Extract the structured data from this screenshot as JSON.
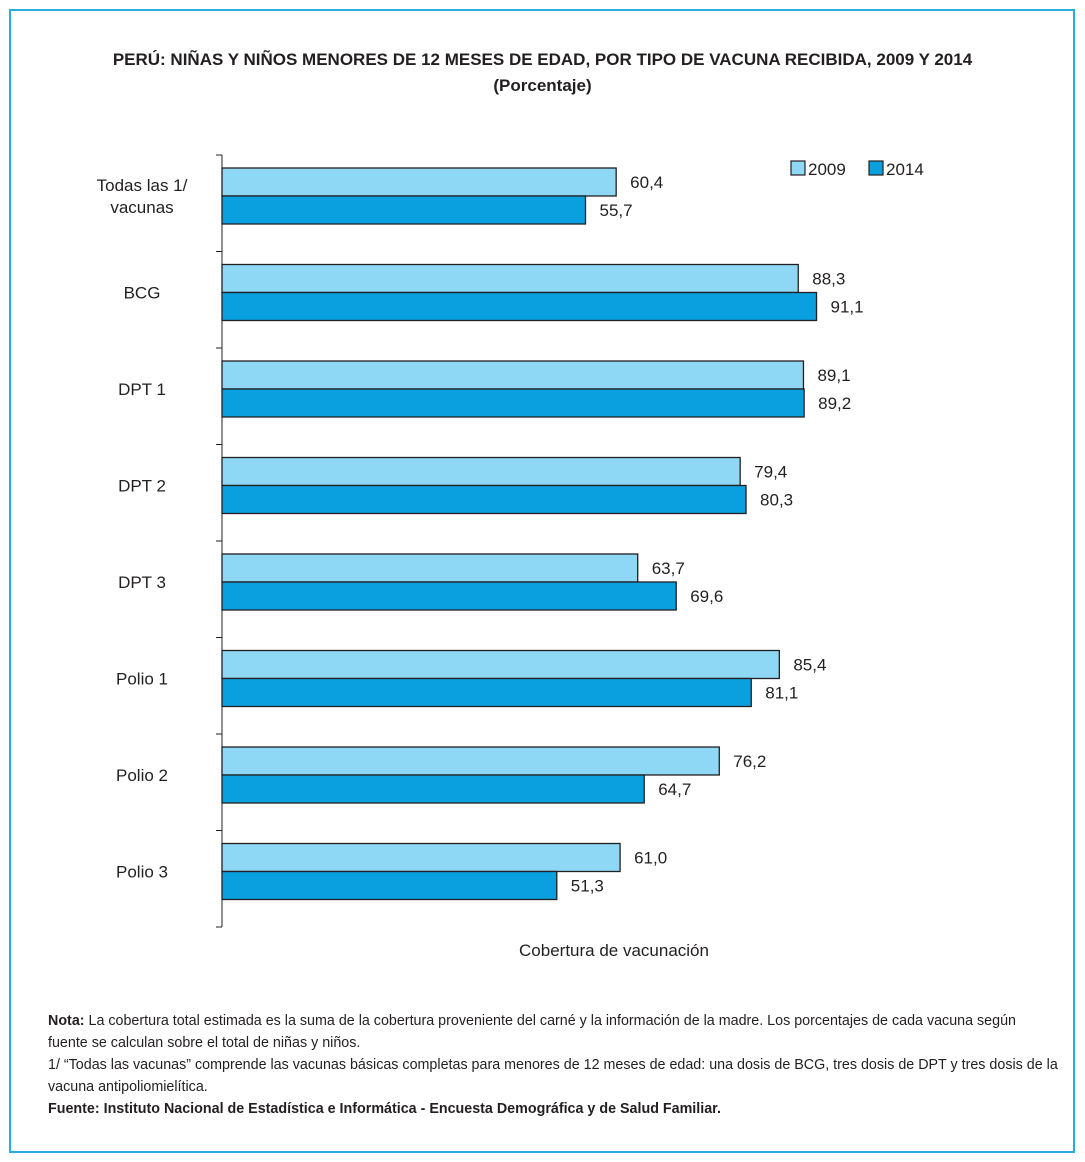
{
  "title_line1": "PERÚ: NIÑAS Y NIÑOS MENORES DE 12 MESES DE EDAD, POR TIPO DE VACUNA RECIBIDA, 2009 Y 2014",
  "title_line2": "(Porcentaje)",
  "chart_data": {
    "type": "bar",
    "orientation": "horizontal",
    "categories": [
      [
        "Todas las 1/",
        "vacunas"
      ],
      [
        "BCG"
      ],
      [
        "DPT 1"
      ],
      [
        "DPT 2"
      ],
      [
        "DPT 3"
      ],
      [
        "Polio 1"
      ],
      [
        "Polio 2"
      ],
      [
        "Polio 3"
      ]
    ],
    "series": [
      {
        "name": "2009",
        "color": "#8fd8f5",
        "values": [
          60.4,
          88.3,
          89.1,
          79.4,
          63.7,
          85.4,
          76.2,
          61.0
        ],
        "labels": [
          "60,4",
          "88,3",
          "89,1",
          "79,4",
          "63,7",
          "85,4",
          "76,2",
          "61,0"
        ]
      },
      {
        "name": "2014",
        "color": "#0aa0e0",
        "values": [
          55.7,
          91.1,
          89.2,
          80.3,
          69.6,
          81.1,
          64.7,
          51.3
        ],
        "labels": [
          "55,7",
          "91,1",
          "89,2",
          "80,3",
          "69,6",
          "81,1",
          "64,7",
          "51,3"
        ]
      }
    ],
    "xlabel": "Cobertura de vacunación",
    "xlim": [
      0,
      100
    ],
    "grid": false,
    "legend": "top-right"
  },
  "notes": {
    "nota_label": "Nota:",
    "nota_text": " La cobertura total estimada es la suma de la cobertura proveniente del carné y la información de la madre. Los porcentajes de cada vacuna según fuente se calculan sobre el total de niñas y niños.",
    "footnote": "1/ “Todas las vacunas” comprende las vacunas básicas completas para menores de 12 meses de edad: una dosis de BCG, tres dosis de DPT y tres dosis de la vacuna antipoliomielítica.",
    "fuente": "Fuente: Instituto Nacional de Estadística e Informática - Encuesta Demográfica y de  Salud Familiar."
  }
}
